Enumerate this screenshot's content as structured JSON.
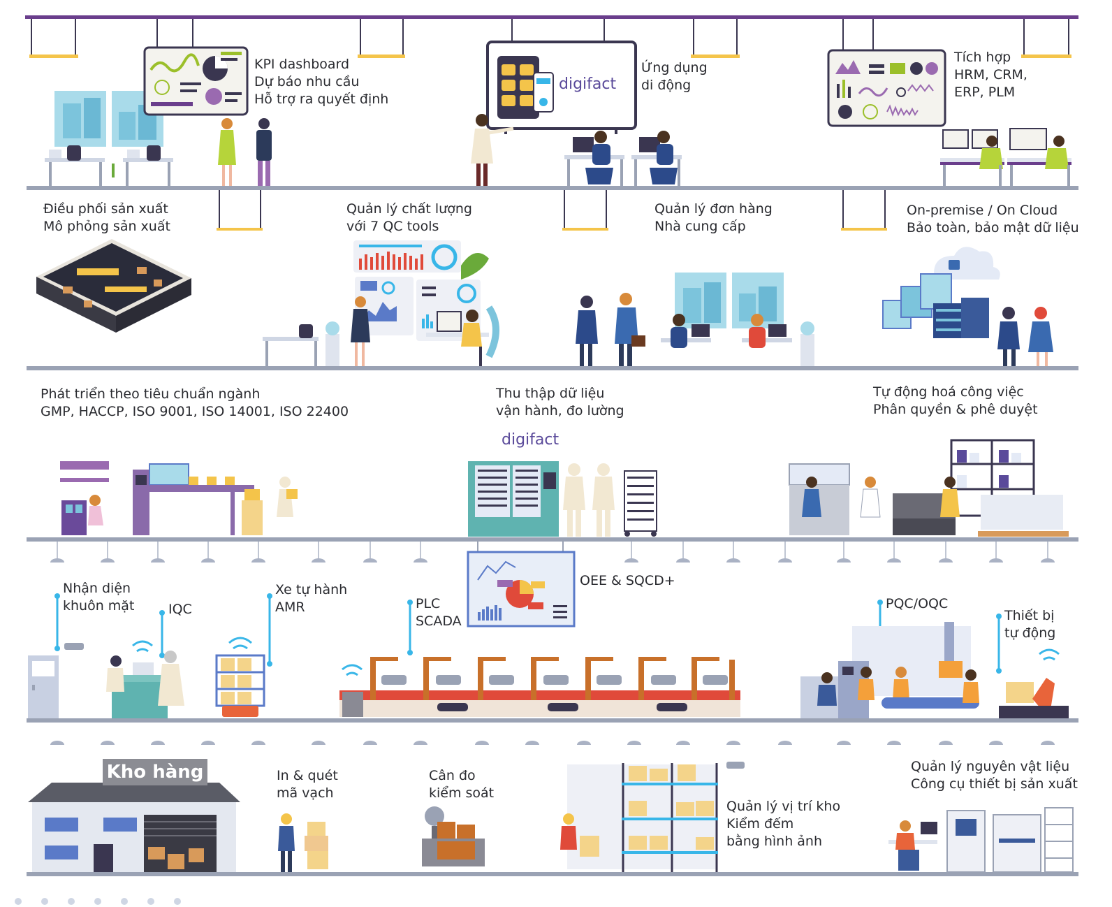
{
  "labels": {
    "kpi": [
      "KPI dashboard",
      "Dự báo nhu cầu",
      "Hỗ trợ ra quyết định"
    ],
    "mobile": [
      "Ứng dụng",
      "di động"
    ],
    "integration": [
      "Tích hợp",
      "HRM, CRM,",
      "ERP, PLM"
    ],
    "production": [
      "Điều phối sản xuất",
      "Mô phỏng sản xuất"
    ],
    "quality": [
      "Quản lý chất lượng",
      "với 7 QC tools"
    ],
    "orders": [
      "Quản lý đơn hàng",
      "Nhà cung cấp"
    ],
    "cloud": [
      "On-premise / On Cloud",
      "Bảo toàn, bảo mật dữ liệu"
    ],
    "standards": [
      "Phát triển theo tiêu chuẩn ngành",
      "GMP, HACCP, ISO 9001, ISO 14001, ISO 22400"
    ],
    "data_collection": [
      "Thu thập dữ liệu",
      "vận hành, đo lường"
    ],
    "automation": [
      "Tự động hoá công việc",
      "Phân quyền & phê duyệt"
    ],
    "face": [
      "Nhận diện",
      "khuôn mặt"
    ],
    "iqc": [
      "IQC"
    ],
    "amr": [
      "Xe tự hành",
      "AMR"
    ],
    "plc": [
      "PLC",
      "SCADA"
    ],
    "oee": [
      "OEE & SQCD+"
    ],
    "pqc": [
      "PQC/OQC"
    ],
    "auto_equipment": [
      "Thiết bị",
      "tự động"
    ],
    "barcode": [
      "In & quét",
      "mã vạch"
    ],
    "weighing": [
      "Cân đo",
      "kiểm soát"
    ],
    "location": [
      "Quản lý vị trí kho",
      "Kiểm đếm",
      "bằng hình ảnh"
    ],
    "materials": [
      "Quản lý nguyên vật liệu",
      "Công cụ thiết bị sản xuất"
    ]
  },
  "warehouse_title": "Kho hàng",
  "brand": {
    "name": "digifact",
    "screen_name": "digifact"
  },
  "colors": {
    "floor": "#9aa2b4",
    "ceiling": "#6a3e8c",
    "lamp": "#f4c44a",
    "accent_blue": "#38b6e8",
    "brand_purple": "#5a4a9a",
    "screen_frame": "#3a3650",
    "text": "#2a2b30"
  }
}
